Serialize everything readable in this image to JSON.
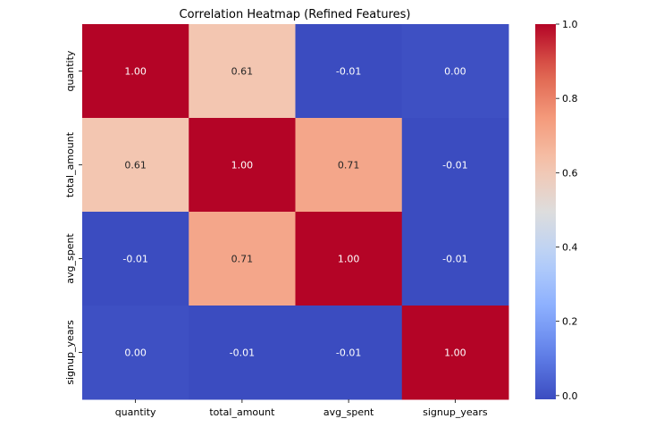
{
  "chart_data": {
    "type": "heatmap",
    "title": "Correlation Heatmap (Refined Features)",
    "xlabel": "",
    "ylabel": "",
    "x_categories": [
      "quantity",
      "total_amount",
      "avg_spent",
      "signup_years"
    ],
    "y_categories": [
      "quantity",
      "total_amount",
      "avg_spent",
      "signup_years"
    ],
    "values": [
      [
        1.0,
        0.61,
        -0.01,
        0.0
      ],
      [
        0.61,
        1.0,
        0.71,
        -0.01
      ],
      [
        -0.01,
        0.71,
        1.0,
        -0.01
      ],
      [
        0.0,
        -0.01,
        -0.01,
        1.0
      ]
    ],
    "cell_labels": [
      [
        "1.00",
        "0.61",
        "-0.01",
        "0.00"
      ],
      [
        "0.61",
        "1.00",
        "0.71",
        "-0.01"
      ],
      [
        "-0.01",
        "0.71",
        "1.00",
        "-0.01"
      ],
      [
        "0.00",
        "-0.01",
        "-0.01",
        "1.00"
      ]
    ],
    "colormap": "coolwarm",
    "colorbar": {
      "range": [
        -0.01,
        1.0
      ],
      "ticks": [
        0.0,
        0.2,
        0.4,
        0.6,
        0.8,
        1.0
      ],
      "tick_labels": [
        "0.0",
        "0.2",
        "0.4",
        "0.6",
        "0.8",
        "1.0"
      ]
    },
    "grid": false
  }
}
